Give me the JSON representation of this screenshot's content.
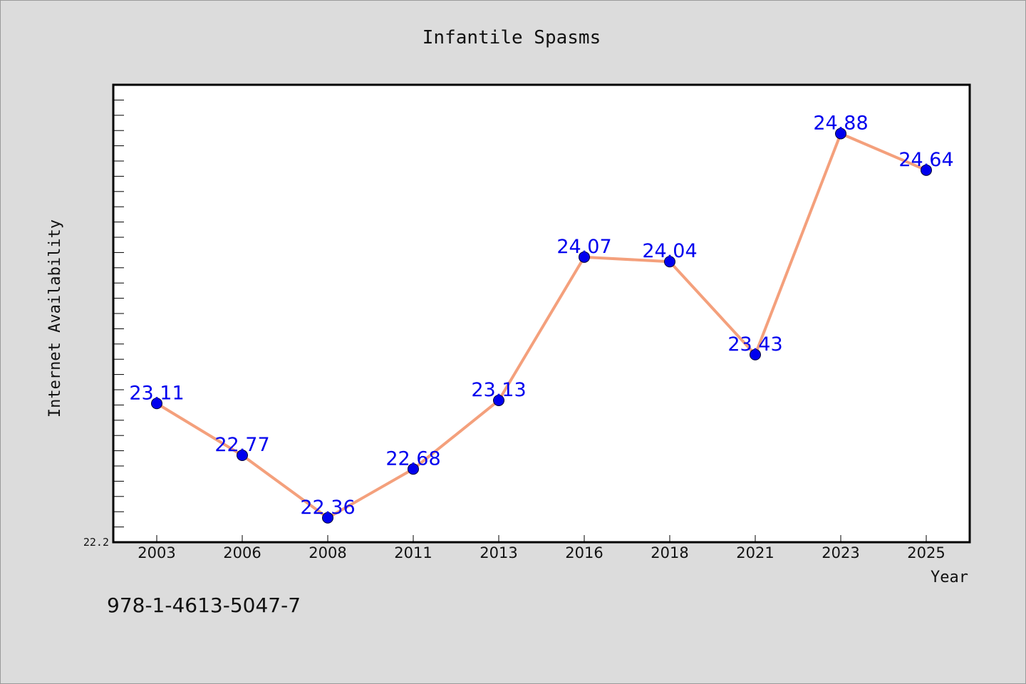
{
  "footer": {
    "code": "978-1-4613-5047-7"
  },
  "colors": {
    "background": "#dcdcdc",
    "plot_background": "#ffffff",
    "line": "#f4a07c",
    "marker": "#0000ee",
    "data_label": "#0000ee"
  },
  "chart_data": {
    "type": "line",
    "title": "Infantile Spasms",
    "xlabel": "Year",
    "ylabel": "Internet Availability",
    "categories": [
      "2003",
      "2006",
      "2008",
      "2011",
      "2013",
      "2016",
      "2018",
      "2021",
      "2023",
      "2025"
    ],
    "series": [
      {
        "values": [
          23.11,
          22.77,
          22.36,
          22.68,
          23.13,
          24.07,
          24.04,
          23.43,
          24.88,
          24.64
        ]
      }
    ],
    "data_labels": [
      "23.11",
      "22.77",
      "22.36",
      "22.68",
      "23.13",
      "24.07",
      "24.04",
      "23.43",
      "24.88",
      "24.64"
    ],
    "ylim": [
      22.2,
      25.2
    ],
    "ytick_labels": [
      "22.2"
    ],
    "grid": false,
    "legend": "none"
  }
}
